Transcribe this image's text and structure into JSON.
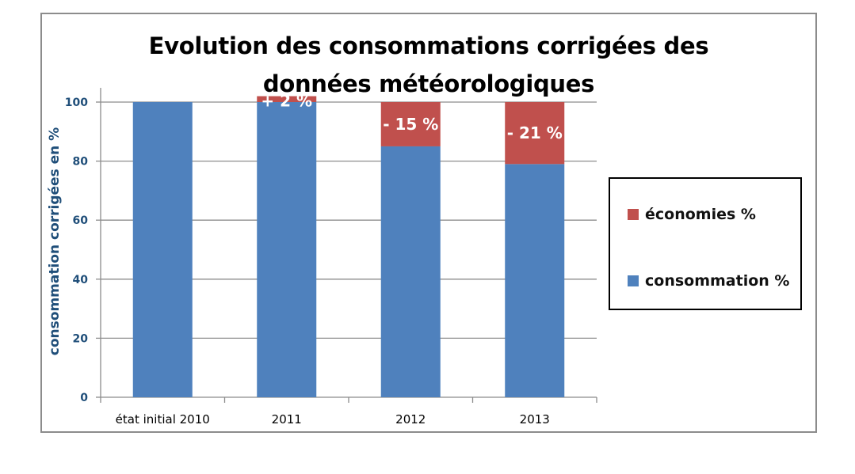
{
  "chart_data": {
    "type": "bar",
    "stacked": true,
    "title": "Evolution des consommations corrigées des données météorologiques",
    "ylabel": "consommation corrigées en %",
    "xlabel": "",
    "categories": [
      "état initial 2010",
      "2011",
      "2012",
      "2013"
    ],
    "ylim": [
      0,
      100
    ],
    "yticks": [
      0,
      20,
      40,
      60,
      80,
      100
    ],
    "grid": true,
    "legend_position": "right",
    "series": [
      {
        "name": "consommation %",
        "color": "#4f81bd",
        "values": [
          100,
          100,
          85,
          79
        ]
      },
      {
        "name": "économies %",
        "color": "#c0504d",
        "values": [
          0,
          2,
          15,
          21
        ]
      }
    ],
    "data_labels": [
      "",
      "+ 2 %",
      "- 15 %",
      "- 21 %"
    ]
  }
}
